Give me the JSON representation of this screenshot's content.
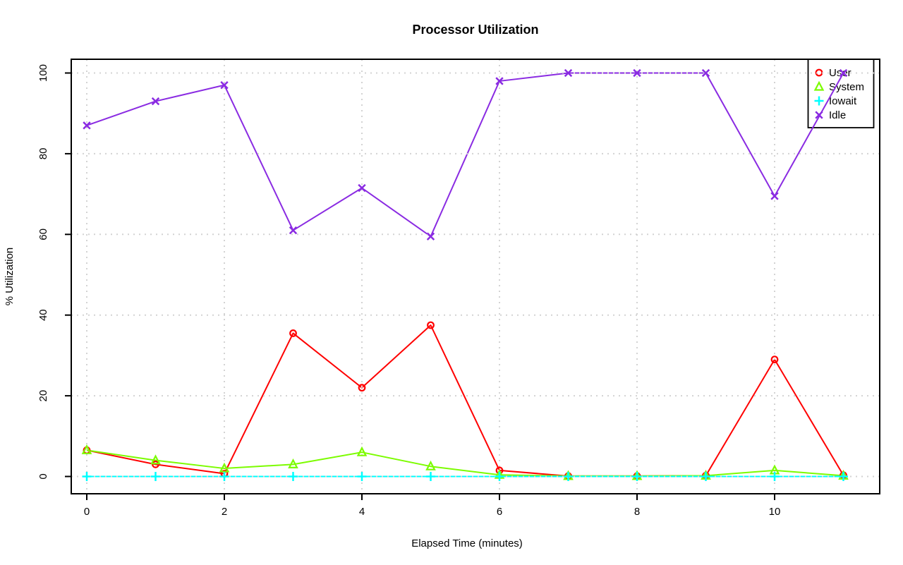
{
  "chart_data": {
    "type": "line",
    "title": "Processor Utilization",
    "xlabel": "Elapsed Time (minutes)",
    "ylabel": "% Utilization",
    "x": [
      0,
      1,
      2,
      3,
      4,
      5,
      6,
      7,
      8,
      9,
      10,
      11
    ],
    "series": [
      {
        "name": "User",
        "color": "#FF0000",
        "marker": "circle",
        "values": [
          6.5,
          3,
          0.7,
          35.5,
          22,
          37.5,
          1.5,
          0.1,
          0.1,
          0.2,
          29,
          0.3
        ]
      },
      {
        "name": "System",
        "color": "#7CFC00",
        "marker": "triangle",
        "values": [
          6.5,
          4,
          2,
          3,
          6,
          2.5,
          0.4,
          0.1,
          0.1,
          0.2,
          1.5,
          0.2
        ]
      },
      {
        "name": "Iowait",
        "color": "#00FFFF",
        "marker": "plus",
        "values": [
          0,
          0,
          0,
          0,
          0,
          0,
          0,
          0,
          0,
          0,
          0,
          0
        ]
      },
      {
        "name": "Idle",
        "color": "#8A2BE2",
        "marker": "x",
        "values": [
          87,
          93,
          97,
          61,
          71.5,
          59.5,
          98,
          100,
          100,
          100,
          69.5,
          100
        ]
      }
    ],
    "xticks": [
      0,
      2,
      4,
      6,
      8,
      10
    ],
    "yticks": [
      0,
      20,
      40,
      60,
      80,
      100
    ],
    "xlim": [
      0,
      11
    ],
    "ylim": [
      0,
      100
    ],
    "grid": {
      "style": "dotted",
      "color": "#d3d3d3",
      "at": "ticks"
    },
    "legend": {
      "position": "topright",
      "entries": [
        "User",
        "System",
        "Iowait",
        "Idle"
      ]
    },
    "colors": {
      "axis": "#000000",
      "background": "#ffffff"
    }
  }
}
